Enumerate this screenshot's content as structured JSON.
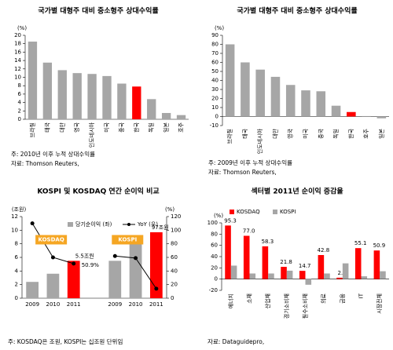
{
  "chart_data": [
    {
      "type": "bar",
      "title": "국가별 대형주 대비 중소형주 상대수익률",
      "y_unit": "(%)",
      "categories": [
        "브라질",
        "태국",
        "대만",
        "영국",
        "인도네시아",
        "미국",
        "중국",
        "한국",
        "독일",
        "일본",
        "호주"
      ],
      "values": [
        18.5,
        13.5,
        11.7,
        11.0,
        10.8,
        10.3,
        8.5,
        7.8,
        4.8,
        1.5,
        1.0
      ],
      "colors": [
        "#a6a6a6",
        "#a6a6a6",
        "#a6a6a6",
        "#a6a6a6",
        "#a6a6a6",
        "#a6a6a6",
        "#a6a6a6",
        "#ff0000",
        "#a6a6a6",
        "#a6a6a6",
        "#a6a6a6"
      ],
      "ylim": [
        0,
        20
      ],
      "yticks": [
        0,
        2,
        4,
        6,
        8,
        10,
        12,
        14,
        16,
        18,
        20
      ],
      "notes": [
        "주: 2010년 이후 누적 상대수익률",
        "자료: Thomson Reuters,"
      ]
    },
    {
      "type": "bar",
      "title": "국가별 대형주 대비 중소형주 상대수익률",
      "y_unit": "(%)",
      "categories": [
        "브라질",
        "태국",
        "인도네시아",
        "대만",
        "영국",
        "미국",
        "중국",
        "독일",
        "한국",
        "호주",
        "일본"
      ],
      "values": [
        80,
        60,
        52,
        44,
        35,
        29,
        28,
        12,
        5,
        0.5,
        -2
      ],
      "colors": [
        "#a6a6a6",
        "#a6a6a6",
        "#a6a6a6",
        "#a6a6a6",
        "#a6a6a6",
        "#a6a6a6",
        "#a6a6a6",
        "#a6a6a6",
        "#ff0000",
        "#a6a6a6",
        "#a6a6a6"
      ],
      "ylim": [
        -10,
        90
      ],
      "yticks": [
        -10,
        0,
        10,
        20,
        30,
        40,
        50,
        60,
        70,
        80,
        90
      ],
      "notes": [
        "주: 2009년 이후 누적 상대수익률",
        "자료: Thomson Reuters,"
      ]
    },
    {
      "type": "combo",
      "title": "KOSPI 및 KOSDAQ 연간 순이익 비교",
      "y_unit": "(조원)",
      "y2_unit": "(%)",
      "groups": [
        "KOSDAQ",
        "KOSPI"
      ],
      "categories": [
        "2009",
        "2010",
        "2011",
        "2009",
        "2010",
        "2011"
      ],
      "series": [
        {
          "name": "당기순이익 (좌)",
          "values": [
            2.4,
            3.6,
            5.5,
            5.5,
            8.5,
            9.7
          ],
          "colors": [
            "#a6a6a6",
            "#a6a6a6",
            "#ff0000",
            "#a6a6a6",
            "#a6a6a6",
            "#ff0000"
          ]
        },
        {
          "name": "YoY (우)",
          "axis": "y2",
          "color": "#000000",
          "values": [
            110,
            60,
            50.9,
            62,
            59,
            14
          ]
        }
      ],
      "annotations": [
        "5.5조원",
        "50.9%",
        "97조원"
      ],
      "ylim": [
        0,
        12
      ],
      "yticks": [
        0,
        2,
        4,
        6,
        8,
        10,
        12
      ],
      "y2lim": [
        0,
        120
      ],
      "y2ticks": [
        0,
        20,
        40,
        60,
        80,
        100,
        120
      ],
      "notes": [
        "주: KOSDAQ은 조원, KOSPI는 십조원 단위임"
      ]
    },
    {
      "type": "bar",
      "title": "섹터별 2011년 순이익 증감율",
      "y_unit": "(%)",
      "categories": [
        "에너지",
        "소재",
        "산업재",
        "경기소비재",
        "필수소비재",
        "의료",
        "금융",
        "IT",
        "시장전체"
      ],
      "series": [
        {
          "name": "KOSDAQ",
          "color": "#ff0000",
          "values": [
            95.3,
            77.0,
            58.3,
            21.8,
            14.7,
            42.8,
            2.5,
            55.1,
            50.9
          ],
          "value_labels": [
            "95.3",
            "77.0",
            "58.3",
            "21.8",
            "14.7",
            "42.8",
            "2.5",
            "55.1",
            "50.9"
          ]
        },
        {
          "name": "KOSPI",
          "color": "#a6a6a6",
          "values": [
            24,
            10,
            10,
            15,
            -10,
            10,
            28,
            5,
            14
          ]
        }
      ],
      "ylim": [
        -20,
        100
      ],
      "yticks": [
        -20,
        0,
        20,
        40,
        60,
        80,
        100
      ],
      "notes": [
        "자료: Dataguidepro,"
      ]
    }
  ]
}
